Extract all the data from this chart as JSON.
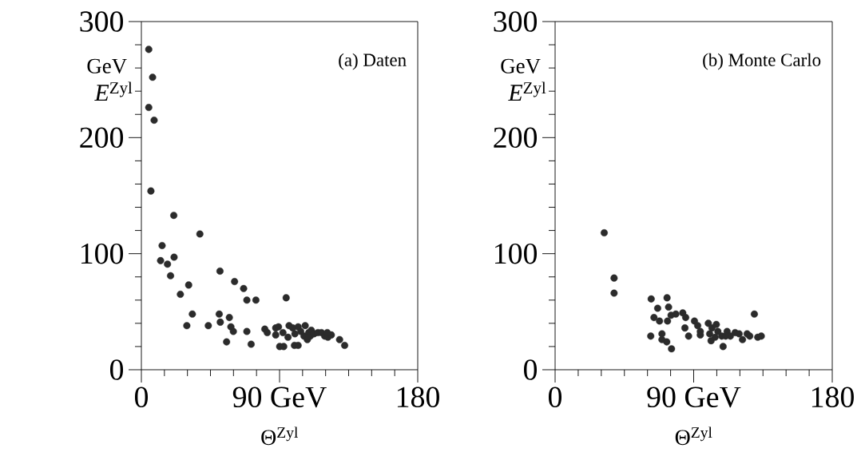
{
  "chart_data": [
    {
      "type": "scatter",
      "xlabel": "Θ$^{Zyl}$",
      "ylabel": "*E*$^{Zyl}$",
      "annotations": [
        "(a) Daten",
        "GeV"
      ],
      "marker": "circle",
      "color": "#2b2b2b",
      "xlim": [
        0,
        180
      ],
      "ylim": [
        0,
        300
      ],
      "xticks": [
        0,
        {
          "value": 15,
          "label": null
        },
        {
          "value": 30,
          "label": null
        },
        {
          "value": 45,
          "label": null
        },
        {
          "value": 60,
          "label": null
        },
        {
          "value": 75,
          "label": null
        },
        {
          "value": 90,
          "label": "90 GeV"
        },
        {
          "value": 105,
          "label": null
        },
        {
          "value": 120,
          "label": null
        },
        {
          "value": 135,
          "label": null
        },
        {
          "value": 150,
          "label": null
        },
        {
          "value": 165,
          "label": null
        },
        180
      ],
      "yticks": [
        0,
        {
          "value": 20,
          "label": null
        },
        {
          "value": 40,
          "label": null
        },
        {
          "value": 60,
          "label": null
        },
        {
          "value": 80,
          "label": null
        },
        100,
        {
          "value": 120,
          "label": null
        },
        {
          "value": 140,
          "label": null
        },
        {
          "value": 160,
          "label": null
        },
        {
          "value": 180,
          "label": null
        },
        200,
        {
          "value": 220,
          "label": null
        },
        {
          "value": 240,
          "label": null
        },
        {
          "value": 260,
          "label": null
        },
        {
          "value": 280,
          "label": null
        },
        300
      ],
      "x": [
        4.8,
        7.3,
        4.8,
        8.3,
        6.2,
        21.1,
        38.1,
        13.5,
        12.5,
        21.3,
        17,
        19,
        51.2,
        30.8,
        60.7,
        25.4,
        66.6,
        68.7,
        74.6,
        94.3,
        33.2,
        50.7,
        51.4,
        57.3,
        29.6,
        43.6,
        58.3,
        59.9,
        55.5,
        68.7,
        71.5,
        80.4,
        82,
        87.5,
        89.3,
        87.5,
        90.1,
        92.7,
        96.2,
        95.5,
        98.6,
        100,
        102.1,
        99.7,
        102.1,
        103.8,
        106.7,
        105.9,
        109,
        110.7,
        110,
        112.5,
        115,
        117.3,
        119.4,
        121.5,
        123.7,
        121.1,
        129.1,
        132.4,
        92.2,
        108.1
      ],
      "values": [
        276,
        252,
        226,
        215,
        154,
        133,
        117,
        107,
        94,
        97,
        91,
        81,
        85,
        73,
        76,
        65,
        70,
        60,
        60,
        62,
        48,
        48,
        41,
        45,
        38,
        38,
        37,
        33,
        24,
        33,
        22,
        35,
        32,
        36,
        37,
        30,
        20,
        20,
        38,
        28,
        36,
        31,
        37,
        21,
        21,
        33,
        38,
        29,
        32,
        34,
        29,
        31,
        32,
        32,
        29,
        28,
        30,
        32,
        26,
        21,
        32,
        26
      ]
    },
    {
      "type": "scatter",
      "xlabel": "Θ$^{Zyl}$",
      "ylabel": "*E*$^{Zyl}$",
      "annotations": [
        "(b) Monte Carlo",
        "GeV"
      ],
      "marker": "circle",
      "color": "#2b2b2b",
      "xlim": [
        0,
        180
      ],
      "ylim": [
        0,
        300
      ],
      "xticks": [
        0,
        {
          "value": 15,
          "label": null
        },
        {
          "value": 30,
          "label": null
        },
        {
          "value": 45,
          "label": null
        },
        {
          "value": 60,
          "label": null
        },
        {
          "value": 75,
          "label": null
        },
        {
          "value": 90,
          "label": "90 GeV"
        },
        {
          "value": 105,
          "label": null
        },
        {
          "value": 120,
          "label": null
        },
        {
          "value": 135,
          "label": null
        },
        {
          "value": 150,
          "label": null
        },
        {
          "value": 165,
          "label": null
        },
        180
      ],
      "yticks": [
        0,
        {
          "value": 20,
          "label": null
        },
        {
          "value": 40,
          "label": null
        },
        {
          "value": 60,
          "label": null
        },
        {
          "value": 80,
          "label": null
        },
        100,
        {
          "value": 120,
          "label": null
        },
        {
          "value": 140,
          "label": null
        },
        {
          "value": 160,
          "label": null
        },
        {
          "value": 180,
          "label": null
        },
        200,
        {
          "value": 220,
          "label": null
        },
        {
          "value": 240,
          "label": null
        },
        {
          "value": 260,
          "label": null
        },
        {
          "value": 280,
          "label": null
        },
        300
      ],
      "x": [
        31.9,
        38.3,
        38.3,
        62.4,
        72.7,
        66.6,
        73.7,
        64.2,
        67.8,
        73,
        75.3,
        78.4,
        82.9,
        84.8,
        84.3,
        86.7,
        62.1,
        69.4,
        69.4,
        72.5,
        75.6,
        90.5,
        92.6,
        94.3,
        94.3,
        99.5,
        101.9,
        104.7,
        100.4,
        101.3,
        103.9,
        108.2,
        109.1,
        111.7,
        113.8,
        116.9,
        119.5,
        121.7,
        124.7,
        126.4,
        129.4,
        131.6,
        133.9,
        110.8,
        105.7
      ],
      "values": [
        118,
        79,
        66,
        61,
        62,
        53,
        54,
        45,
        42,
        42,
        47,
        48,
        49,
        45,
        36,
        29,
        29,
        31,
        26,
        24,
        18,
        42,
        38,
        33,
        30,
        40,
        36,
        39,
        31,
        25,
        28,
        29,
        20,
        33,
        29,
        32,
        31,
        26,
        31,
        29,
        48,
        28,
        29,
        29,
        33
      ]
    }
  ]
}
